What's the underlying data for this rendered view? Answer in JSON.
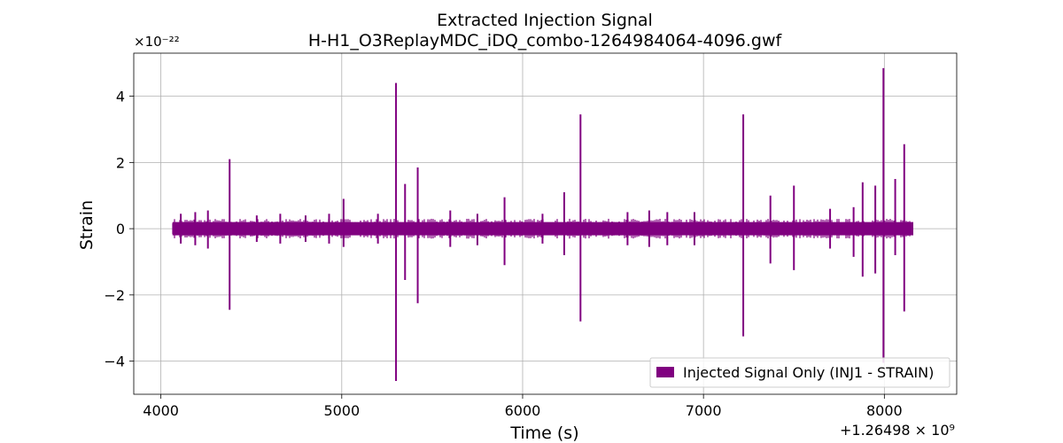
{
  "chart_data": {
    "type": "line",
    "title": "Extracted Injection Signal",
    "subtitle": "H-H1_O3ReplayMDC_iDQ_combo-1264984064-4096.gwf",
    "xlabel": "Time (s)",
    "ylabel": "Strain",
    "y_exponent_label": "×10⁻²²",
    "x_offset_label": "+1.26498 × 10⁹",
    "xlim": [
      3850,
      8400
    ],
    "ylim": [
      -5.0,
      5.3
    ],
    "x_ticks": [
      4000,
      5000,
      6000,
      7000,
      8000
    ],
    "x_tick_labels": [
      "4000",
      "5000",
      "6000",
      "7000",
      "8000"
    ],
    "y_ticks": [
      -4,
      -2,
      0,
      2,
      4
    ],
    "y_tick_labels": [
      "−4",
      "−2",
      "0",
      "2",
      "4"
    ],
    "grid": true,
    "legend_position": "lower-right",
    "series": [
      {
        "name": "Injected Signal Only (INJ1 - STRAIN)",
        "color": "#800080",
        "x_range": [
          4064,
          8160
        ],
        "baseline_band": [
          -0.2,
          0.2
        ],
        "spikes": [
          {
            "x": 4110,
            "max": 0.45,
            "min": -0.45
          },
          {
            "x": 4190,
            "max": 0.5,
            "min": -0.5
          },
          {
            "x": 4260,
            "max": 0.55,
            "min": -0.6
          },
          {
            "x": 4380,
            "max": 2.1,
            "min": -2.45
          },
          {
            "x": 4530,
            "max": 0.4,
            "min": -0.4
          },
          {
            "x": 4660,
            "max": 0.45,
            "min": -0.45
          },
          {
            "x": 4800,
            "max": 0.4,
            "min": -0.4
          },
          {
            "x": 4930,
            "max": 0.45,
            "min": -0.45
          },
          {
            "x": 5010,
            "max": 0.9,
            "min": -0.55
          },
          {
            "x": 5200,
            "max": 0.45,
            "min": -0.45
          },
          {
            "x": 5300,
            "max": 4.4,
            "min": -4.6
          },
          {
            "x": 5350,
            "max": 1.35,
            "min": -1.55
          },
          {
            "x": 5420,
            "max": 1.85,
            "min": -2.25
          },
          {
            "x": 5600,
            "max": 0.55,
            "min": -0.55
          },
          {
            "x": 5750,
            "max": 0.45,
            "min": -0.5
          },
          {
            "x": 5900,
            "max": 0.95,
            "min": -1.1
          },
          {
            "x": 6110,
            "max": 0.45,
            "min": -0.45
          },
          {
            "x": 6230,
            "max": 1.1,
            "min": -0.8
          },
          {
            "x": 6320,
            "max": 3.45,
            "min": -2.8
          },
          {
            "x": 6580,
            "max": 0.5,
            "min": -0.5
          },
          {
            "x": 6700,
            "max": 0.55,
            "min": -0.55
          },
          {
            "x": 6800,
            "max": 0.5,
            "min": -0.5
          },
          {
            "x": 6950,
            "max": 0.5,
            "min": -0.5
          },
          {
            "x": 7220,
            "max": 3.45,
            "min": -3.25
          },
          {
            "x": 7370,
            "max": 1.0,
            "min": -1.05
          },
          {
            "x": 7500,
            "max": 1.3,
            "min": -1.25
          },
          {
            "x": 7700,
            "max": 0.6,
            "min": -0.6
          },
          {
            "x": 7830,
            "max": 0.65,
            "min": -0.85
          },
          {
            "x": 7880,
            "max": 1.4,
            "min": -1.45
          },
          {
            "x": 7950,
            "max": 1.3,
            "min": -1.35
          },
          {
            "x": 7995,
            "max": 4.85,
            "min": -4.05
          },
          {
            "x": 8060,
            "max": 1.5,
            "min": -0.8
          },
          {
            "x": 8110,
            "max": 2.55,
            "min": -2.5
          }
        ]
      }
    ]
  }
}
